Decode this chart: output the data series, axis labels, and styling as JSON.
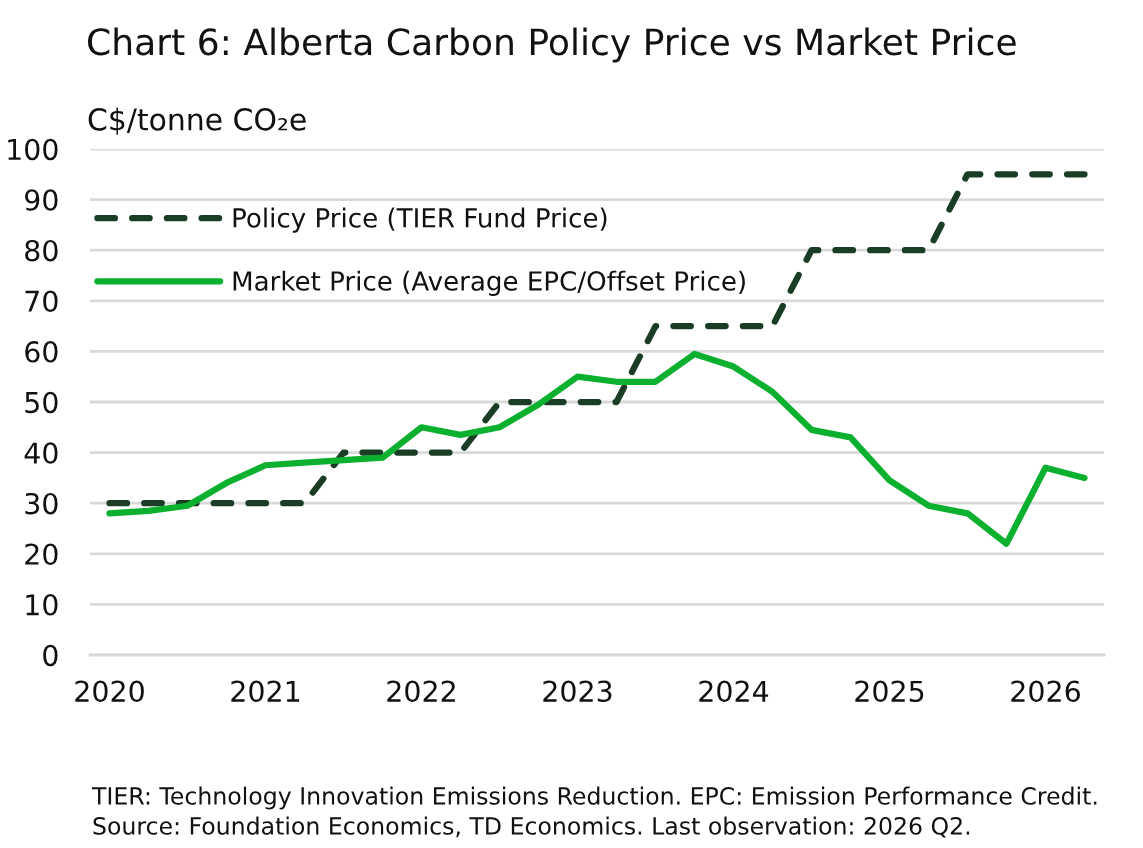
{
  "chart_data": {
    "type": "line",
    "title": "Chart 6: Alberta Carbon Policy Price vs Market Price",
    "ylabel": "C$/tonne CO₂e",
    "categories": [
      "2020",
      null,
      null,
      null,
      "2021",
      null,
      null,
      null,
      "2022",
      null,
      null,
      null,
      "2023",
      null,
      null,
      null,
      "2024",
      null,
      null,
      null,
      "2025",
      null,
      null,
      null,
      "2026",
      null
    ],
    "series": [
      {
        "name": "Policy Price (TIER Fund Price)",
        "color": "#1b3d26",
        "line_style": "dashed",
        "values": [
          30,
          30,
          30,
          30,
          30,
          30,
          40,
          40,
          40,
          40,
          50,
          50,
          50,
          50,
          65,
          65,
          65,
          65,
          80,
          80,
          80,
          80,
          95,
          95,
          95,
          95
        ]
      },
      {
        "name": "Market Price (Average EPC/Offset Price)",
        "color": "#0bb02e",
        "line_style": "solid",
        "values": [
          28,
          28.5,
          29.5,
          34,
          37.5,
          38,
          38.5,
          39,
          45,
          43.5,
          45,
          49.5,
          55,
          54,
          54,
          59.5,
          57,
          52,
          44.5,
          43,
          34.5,
          29.5,
          28,
          22,
          37,
          35
        ]
      }
    ],
    "ylim": [
      0,
      100
    ],
    "yticks": [
      0,
      10,
      20,
      30,
      40,
      50,
      60,
      70,
      80,
      90,
      100
    ],
    "grid": "y",
    "legend": "top left",
    "annotations": [
      "TIER: Technology Innovation Emissions Reduction. EPC: Emission Performance Credit.",
      "Source: Foundation Economics, TD Economics. Last observation: 2026 Q2."
    ]
  }
}
